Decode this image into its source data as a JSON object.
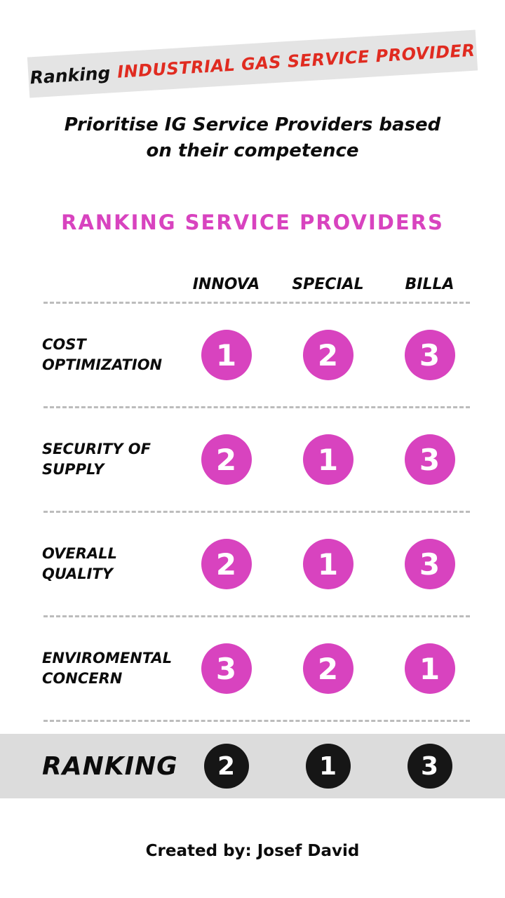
{
  "banner": {
    "prefix": "Ranking",
    "title": "INDUSTRIAL GAS SERVICE PROVIDER",
    "background_color": "#e4e4e4",
    "prefix_color": "#111111",
    "title_color": "#e02b20"
  },
  "subtitle": {
    "line1": "Prioritise IG Service Providers based",
    "line2": "on their competence"
  },
  "section_title": {
    "text": "RANKING SERVICE PROVIDERS",
    "color": "#d843bf"
  },
  "table": {
    "columns": [
      "INNOVA",
      "SPECIAL",
      "BILLA"
    ],
    "rows": [
      {
        "label": "COST OPTIMIZATION",
        "values": [
          1,
          2,
          3
        ]
      },
      {
        "label": "SECURITY OF SUPPLY",
        "values": [
          2,
          1,
          3
        ]
      },
      {
        "label": "OVERALL QUALITY",
        "values": [
          2,
          1,
          3
        ]
      },
      {
        "label": "ENVIROMENTAL CONCERN",
        "values": [
          3,
          2,
          1
        ]
      }
    ],
    "rank_circle_color": "#d843bf",
    "rank_text_color": "#ffffff",
    "separator_color": "#bcbcbc"
  },
  "ranking_row": {
    "label": "RANKING",
    "values": [
      2,
      1,
      3
    ],
    "circle_color": "#161616",
    "band_color": "#dcdcdc"
  },
  "footer": {
    "text": "Created by: Josef David"
  },
  "chart_data": {
    "type": "table",
    "title": "RANKING SERVICE PROVIDERS",
    "subtitle": "Prioritise IG Service Providers based on their competence",
    "columns": [
      "INNOVA",
      "SPECIAL",
      "BILLA"
    ],
    "rows": [
      {
        "criterion": "COST OPTIMIZATION",
        "ranks": [
          1,
          2,
          3
        ]
      },
      {
        "criterion": "SECURITY OF SUPPLY",
        "ranks": [
          2,
          1,
          3
        ]
      },
      {
        "criterion": "OVERALL QUALITY",
        "ranks": [
          2,
          1,
          3
        ]
      },
      {
        "criterion": "ENVIROMENTAL CONCERN",
        "ranks": [
          3,
          2,
          1
        ]
      },
      {
        "criterion": "RANKING",
        "ranks": [
          2,
          1,
          3
        ]
      }
    ]
  }
}
